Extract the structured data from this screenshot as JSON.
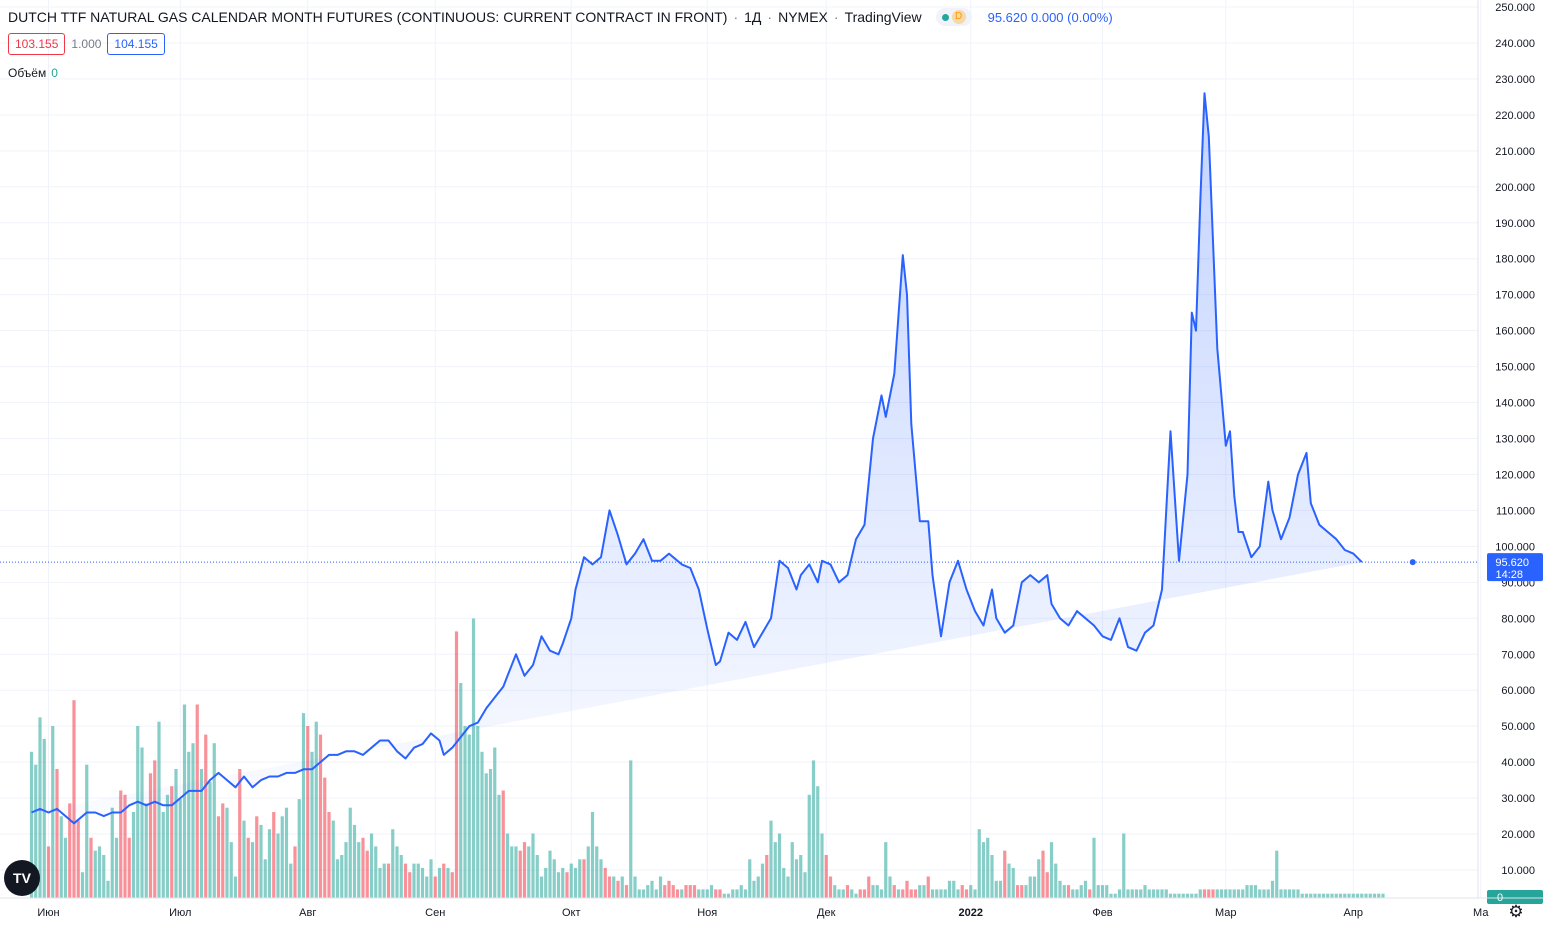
{
  "header": {
    "title": "DUTCH TTF NATURAL GAS CALENDAR MONTH FUTURES (CONTINUOUS: CURRENT CONTRACT IN FRONT)",
    "interval": "1Д",
    "exchange": "NYMEX",
    "source": "TradingView",
    "status_letter": "D",
    "last_price": "95.620",
    "change": "0.000",
    "change_pct": "(0.00%)"
  },
  "quote": {
    "bid": "103.155",
    "spread": "1.000",
    "ask": "104.155"
  },
  "volume_label": {
    "name": "Объём",
    "value": "0"
  },
  "price_badge": {
    "price": "95.620",
    "countdown": "14:28"
  },
  "volume_badge": "0",
  "colors": {
    "line": "#2962ff",
    "fill": "#2962ff",
    "vol_up": "#26a69a",
    "vol_down": "#f23645",
    "grid": "#f0f3fa"
  },
  "chart_data": {
    "type": "area",
    "y_ticks": [
      "250.000",
      "240.000",
      "230.000",
      "220.000",
      "210.000",
      "200.000",
      "190.000",
      "180.000",
      "170.000",
      "160.000",
      "150.000",
      "140.000",
      "130.000",
      "120.000",
      "110.000",
      "100.000",
      "90.000",
      "80.000",
      "70.000",
      "60.000",
      "50.000",
      "40.000",
      "30.000",
      "20.000",
      "10.000"
    ],
    "ylim": [
      0,
      250
    ],
    "x_labels": [
      "Июн",
      "Июл",
      "Авг",
      "Сен",
      "Окт",
      "Ноя",
      "Дек",
      "2022",
      "Фев",
      "Мар",
      "Апр",
      "Ма"
    ],
    "x_label_days": [
      2,
      33,
      63,
      93,
      125,
      157,
      185,
      219,
      250,
      279,
      309,
      339
    ],
    "price": {
      "day": [
        -2,
        0,
        2,
        4,
        6,
        8,
        9,
        11,
        13,
        15,
        17,
        19,
        21,
        23,
        25,
        27,
        29,
        31,
        33,
        35,
        37,
        38,
        40,
        42,
        44,
        46,
        48,
        50,
        52,
        54,
        56,
        58,
        60,
        62,
        64,
        66,
        68,
        70,
        72,
        74,
        76,
        78,
        80,
        82,
        84,
        86,
        88,
        90,
        92,
        94,
        95,
        97,
        99,
        101,
        103,
        105,
        107,
        109,
        110,
        112,
        114,
        116,
        118,
        120,
        122,
        123,
        125,
        126,
        128,
        130,
        132,
        134,
        136,
        138,
        140,
        142,
        144,
        146,
        148,
        150,
        151,
        153,
        155,
        157,
        159,
        160,
        162,
        164,
        166,
        168,
        170,
        172,
        174,
        176,
        178,
        179,
        181,
        183,
        184,
        186,
        188,
        190,
        192,
        194,
        196,
        198,
        199,
        201,
        203,
        204,
        205,
        207,
        209,
        210,
        212,
        214,
        216,
        218,
        220,
        222,
        224,
        225,
        227,
        229,
        231,
        233,
        235,
        237,
        238,
        240,
        242,
        244,
        246,
        248,
        250,
        252,
        254,
        256,
        258,
        260,
        262,
        264,
        266,
        268,
        270,
        271,
        272,
        273,
        274,
        275,
        277,
        279,
        280,
        281,
        282,
        283,
        285,
        287,
        289,
        290,
        292,
        294,
        296,
        298,
        299,
        301,
        303,
        305,
        307,
        309,
        311,
        313,
        315,
        317,
        319,
        321,
        323
      ],
      "close": [
        26,
        27,
        26,
        27,
        25,
        23,
        24,
        26,
        26,
        25,
        26,
        26,
        28,
        29,
        28,
        29,
        28,
        28,
        30,
        32,
        32,
        32,
        35,
        37,
        35,
        33,
        36,
        33,
        35,
        36,
        36,
        37,
        37,
        38,
        38,
        40,
        42,
        42,
        43,
        43,
        42,
        44,
        46,
        46,
        43,
        41,
        44,
        45,
        48,
        46,
        42,
        44,
        47,
        50,
        51,
        55,
        58,
        61,
        64,
        70,
        64,
        67,
        75,
        71,
        70,
        73,
        80,
        88,
        97,
        95,
        97,
        110,
        103,
        95,
        98,
        102,
        96,
        96,
        98,
        96,
        95,
        94,
        88,
        77,
        67,
        68,
        76,
        74,
        79,
        72,
        76,
        80,
        96,
        94,
        88,
        92,
        95,
        90,
        96,
        95,
        90,
        92,
        102,
        106,
        130,
        142,
        136,
        148,
        181,
        170,
        134,
        107,
        107,
        92,
        75,
        90,
        96,
        88,
        82,
        78,
        88,
        80,
        76,
        78,
        90,
        92,
        90,
        92,
        84,
        80,
        78,
        82,
        80,
        78,
        75,
        74,
        80,
        72,
        71,
        76,
        78,
        88,
        132,
        96,
        120,
        165,
        160,
        196,
        226,
        214,
        155,
        128,
        132,
        114,
        104,
        104,
        97,
        100,
        118,
        110,
        102,
        108,
        120,
        126,
        112,
        106,
        104,
        102,
        99,
        98,
        95.62
      ]
    },
    "volume": {
      "day": [
        -2,
        -1,
        0,
        1,
        2,
        3,
        4,
        5,
        6,
        7,
        8,
        9,
        10,
        11,
        12,
        13,
        14,
        15,
        16,
        17,
        18,
        19,
        20,
        21,
        22,
        23,
        24,
        25,
        26,
        27,
        28,
        29,
        30,
        31,
        32,
        33,
        34,
        35,
        36,
        37,
        38,
        39,
        40,
        41,
        42,
        43,
        44,
        45,
        46,
        47,
        48,
        49,
        50,
        51,
        52,
        53,
        54,
        55,
        56,
        57,
        58,
        59,
        60,
        61,
        62,
        63,
        64,
        65,
        66,
        67,
        68,
        69,
        70,
        71,
        72,
        73,
        74,
        75,
        76,
        77,
        78,
        79,
        80,
        81,
        82,
        83,
        84,
        85,
        86,
        87,
        88,
        89,
        90,
        91,
        92,
        93,
        94,
        95,
        96,
        97,
        98,
        99,
        100,
        101,
        102,
        103,
        104,
        105,
        106,
        107,
        108,
        109,
        110,
        111,
        112,
        113,
        114,
        115,
        116,
        117,
        118,
        119,
        120,
        121,
        122,
        123,
        124,
        125,
        126,
        127,
        128,
        129,
        130,
        131,
        132,
        133,
        134,
        135,
        136,
        137,
        138,
        139,
        140,
        141,
        142,
        143,
        144,
        145,
        146,
        147,
        148,
        149,
        150,
        151,
        152,
        153,
        154,
        155,
        156,
        157,
        158,
        159,
        160,
        161,
        162,
        163,
        164,
        165,
        166,
        167,
        168,
        169,
        170,
        171,
        172,
        173,
        174,
        175,
        176,
        177,
        178,
        179,
        180,
        181,
        182,
        183,
        184,
        185,
        186,
        187,
        188,
        189,
        190,
        191,
        192,
        193,
        194,
        195,
        196,
        197,
        198,
        199,
        200,
        201,
        202,
        203,
        204,
        205,
        206,
        207,
        208,
        209,
        210,
        211,
        212,
        213,
        214,
        215,
        216,
        217,
        218,
        219,
        220,
        221,
        222,
        223,
        224,
        225,
        226,
        227,
        228,
        229,
        230,
        231,
        232,
        233,
        234,
        235,
        236,
        237,
        238,
        239,
        240,
        241,
        242,
        243,
        244,
        245,
        246,
        247,
        248,
        249,
        250,
        251,
        252,
        253,
        254,
        255,
        256,
        257,
        258,
        259,
        260,
        261,
        262,
        263,
        264,
        265,
        266,
        267,
        268,
        269,
        270,
        271,
        272,
        273,
        274,
        275,
        276,
        277,
        278,
        279,
        280,
        281,
        282,
        283,
        284,
        285,
        286,
        287,
        288,
        289,
        290,
        291,
        292,
        293,
        294,
        295,
        296,
        297,
        298,
        299,
        300,
        301,
        302,
        303,
        304,
        305,
        306,
        307,
        308,
        309,
        310,
        311,
        312,
        313,
        314,
        315,
        316,
        317,
        318,
        319,
        320,
        321,
        322,
        323
      ],
      "value": [
        34,
        31,
        42,
        37,
        12,
        40,
        30,
        19,
        14,
        22,
        46,
        18,
        6,
        31,
        14,
        11,
        12,
        10,
        4,
        21,
        14,
        25,
        24,
        14,
        20,
        40,
        35,
        22,
        29,
        32,
        41,
        20,
        24,
        26,
        30,
        23,
        45,
        34,
        36,
        45,
        30,
        38,
        27,
        36,
        19,
        22,
        21,
        13,
        5,
        30,
        18,
        14,
        13,
        19,
        17,
        9,
        16,
        20,
        15,
        19,
        21,
        8,
        12,
        23,
        43,
        40,
        34,
        41,
        38,
        28,
        20,
        18,
        9,
        10,
        13,
        21,
        17,
        13,
        14,
        11,
        15,
        12,
        7,
        8,
        8,
        16,
        12,
        10,
        8,
        6,
        8,
        8,
        7,
        5,
        9,
        5,
        7,
        8,
        7,
        6,
        62,
        50,
        40,
        38,
        65,
        40,
        34,
        29,
        30,
        35,
        24,
        25,
        15,
        12,
        12,
        11,
        13,
        12,
        15,
        10,
        5,
        7,
        11,
        9,
        6,
        7,
        6,
        8,
        7,
        9,
        9,
        12,
        20,
        12,
        9,
        7,
        5,
        5,
        4,
        5,
        3,
        32,
        5,
        2,
        2,
        3,
        4,
        2,
        5,
        3,
        4,
        3,
        2,
        2,
        3,
        3,
        3,
        2,
        2,
        2,
        3,
        2,
        2,
        1,
        1,
        2,
        2,
        3,
        2,
        9,
        4,
        5,
        8,
        10,
        18,
        13,
        15,
        7,
        5,
        13,
        9,
        10,
        6,
        24,
        32,
        26,
        15,
        10,
        5,
        3,
        2,
        2,
        3,
        2,
        1,
        2,
        2,
        5,
        3,
        3,
        2,
        13,
        5,
        3,
        2,
        2,
        4,
        2,
        2,
        3,
        3,
        5,
        2,
        2,
        2,
        2,
        4,
        4,
        2,
        3,
        2,
        3,
        2,
        16,
        13,
        14,
        10,
        4,
        4,
        11,
        8,
        7,
        3,
        3,
        3,
        5,
        5,
        9,
        11,
        6,
        13,
        8,
        4,
        3,
        3,
        2,
        2,
        3,
        4,
        2,
        14,
        3,
        3,
        3,
        1,
        1,
        2,
        15,
        2,
        2,
        2,
        2,
        3,
        2,
        2,
        2,
        2,
        2,
        1,
        1,
        1,
        1,
        1,
        1,
        1,
        2,
        2,
        2,
        2,
        2,
        2,
        2,
        2,
        2,
        2,
        2,
        3,
        3,
        3,
        2,
        2,
        2,
        4,
        11,
        2,
        2,
        2,
        2,
        2,
        1,
        1,
        1,
        1,
        1,
        1,
        1,
        1,
        1,
        1,
        1,
        1,
        1,
        1,
        1,
        1,
        1,
        1,
        1,
        1
      ],
      "direction": [
        "u",
        "u",
        "u",
        "u",
        "d",
        "u",
        "d",
        "u",
        "u",
        "d",
        "d",
        "d",
        "u",
        "u",
        "d",
        "u",
        "u",
        "u",
        "u",
        "u",
        "u",
        "d",
        "d",
        "d",
        "u",
        "u",
        "u",
        "u",
        "d",
        "d",
        "u",
        "u",
        "u",
        "d",
        "u",
        "u",
        "u",
        "u",
        "u",
        "d",
        "u",
        "d",
        "u",
        "u",
        "d",
        "d",
        "u",
        "u",
        "u",
        "d",
        "u",
        "d",
        "u",
        "d",
        "u",
        "u",
        "u",
        "d",
        "u",
        "u",
        "u",
        "u",
        "d",
        "u",
        "u",
        "d",
        "u",
        "u",
        "d",
        "d",
        "d",
        "u",
        "u",
        "u",
        "u",
        "u",
        "u",
        "u",
        "d",
        "d",
        "u",
        "u",
        "u",
        "u",
        "d",
        "u",
        "u",
        "u",
        "d",
        "d",
        "u",
        "u",
        "u",
        "u",
        "u",
        "d",
        "u",
        "d",
        "u",
        "d",
        "d",
        "u",
        "u",
        "u",
        "u",
        "u",
        "u",
        "u",
        "u",
        "u",
        "u",
        "d",
        "u",
        "u",
        "u",
        "d",
        "d",
        "u",
        "u",
        "u",
        "u",
        "u",
        "u",
        "u",
        "u",
        "u",
        "d",
        "u",
        "u",
        "u",
        "d",
        "u",
        "u",
        "u",
        "u",
        "d",
        "d",
        "u",
        "d",
        "u",
        "d",
        "u",
        "u",
        "u",
        "u",
        "u",
        "u",
        "u",
        "u",
        "d",
        "d",
        "d",
        "d",
        "u",
        "d",
        "d",
        "d",
        "u",
        "u",
        "u",
        "u",
        "d",
        "d",
        "u",
        "u",
        "u",
        "u",
        "u",
        "u",
        "u",
        "u",
        "u",
        "u",
        "d",
        "u",
        "u",
        "u",
        "u",
        "u",
        "u",
        "u",
        "u",
        "u",
        "u",
        "u",
        "u",
        "u",
        "d",
        "d",
        "u",
        "u",
        "u",
        "d",
        "u",
        "u",
        "d",
        "d",
        "d",
        "u",
        "u",
        "u",
        "u",
        "u",
        "d",
        "u",
        "d",
        "d",
        "d",
        "d",
        "u",
        "u",
        "d",
        "u",
        "u",
        "u",
        "u",
        "u",
        "u",
        "u",
        "d",
        "d",
        "u",
        "u",
        "u",
        "u",
        "u",
        "u",
        "u",
        "u",
        "d",
        "u",
        "u",
        "d",
        "d",
        "u",
        "u",
        "u",
        "u",
        "d",
        "d",
        "u",
        "u",
        "u",
        "u",
        "d",
        "u",
        "u",
        "u",
        "u",
        "d",
        "u",
        "u",
        "u",
        "u",
        "u",
        "u",
        "u",
        "u",
        "u",
        "u",
        "u",
        "u",
        "u",
        "u",
        "u",
        "u",
        "u",
        "u",
        "u",
        "u",
        "u",
        "u",
        "u",
        "u",
        "u",
        "u",
        "d",
        "d",
        "d",
        "u",
        "u",
        "u",
        "u",
        "u",
        "u",
        "u",
        "u",
        "u",
        "u",
        "u",
        "u",
        "u",
        "u",
        "u",
        "u",
        "u",
        "u",
        "u",
        "u",
        "u",
        "u",
        "u",
        "u",
        "u",
        "u",
        "u",
        "u",
        "u"
      ]
    }
  }
}
